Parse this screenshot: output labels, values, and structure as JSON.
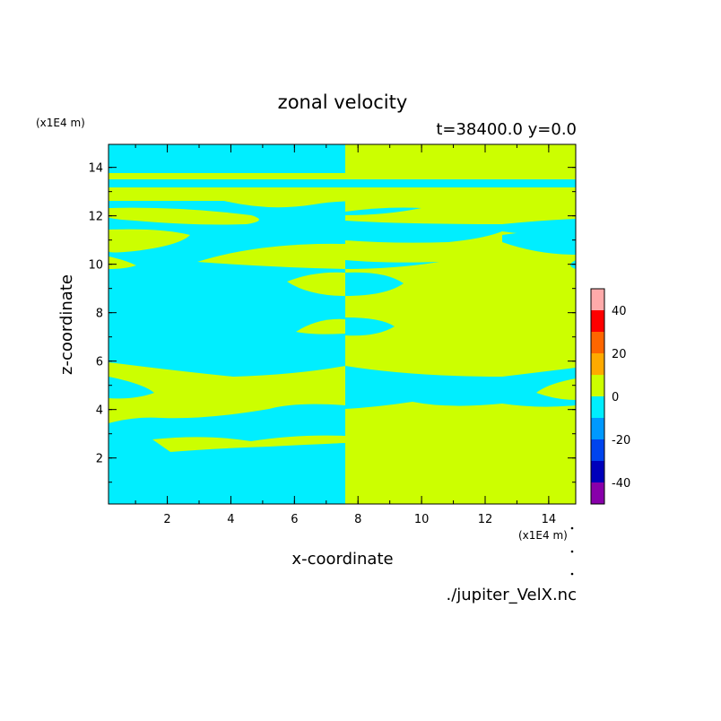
{
  "figure": {
    "title": "zonal velocity",
    "subtitle": "t=38400.0 y=0.0",
    "source": "./jupiter_VelX.nc",
    "z_unit": "(x1E4 m)",
    "x_unit": "(x1E4 m)"
  },
  "chart_data": {
    "type": "heatmap",
    "title": "zonal velocity",
    "subtitle": "t=38400.0 y=0.0",
    "xlabel": "x-coordinate",
    "ylabel": "z-coordinate",
    "x_unit": "(x1E4 m)",
    "y_unit": "(x1E4 m)",
    "xlim": [
      0.15,
      14.85
    ],
    "ylim": [
      0.1,
      14.95
    ],
    "x_ticks": [
      2,
      4,
      6,
      8,
      10,
      12,
      14
    ],
    "y_ticks": [
      2,
      4,
      6,
      8,
      10,
      12,
      14
    ],
    "grid": false,
    "colorbar": {
      "levels": [
        -50,
        -40,
        -30,
        -20,
        -10,
        0,
        10,
        20,
        30,
        40,
        50
      ],
      "tick_labels": [
        "40",
        "20",
        "0",
        "-20",
        "-40"
      ],
      "tick_values": [
        40,
        20,
        0,
        -20,
        -40
      ],
      "colors": [
        "#8800aa",
        "#0000bb",
        "#0044ee",
        "#0099ff",
        "#00eeff",
        "#ccff00",
        "#ffaa00",
        "#ff6600",
        "#ff0000",
        "#ffaaaa"
      ]
    },
    "colors": {
      "positive_band": "#ccff00",
      "negative_band": "#00eeff"
    },
    "regions_description": [
      {
        "z_range": [
          14,
          14.95
        ],
        "left_half": "negative",
        "right_half": "positive"
      },
      {
        "z_range": [
          13.7,
          14
        ],
        "left_half": "positive",
        "right_half": "positive"
      },
      {
        "z_range": [
          13.2,
          13.7
        ],
        "left_half": "negative",
        "right_half": "negative"
      },
      {
        "z_range": [
          6,
          12.5
        ],
        "left_half": "mostly negative",
        "right_half": "mostly positive"
      },
      {
        "z_range": [
          4,
          6
        ],
        "left_half": "mostly positive",
        "right_half": "mostly negative"
      },
      {
        "z_range": [
          0.1,
          4
        ],
        "left_half": "mixed",
        "right_half": "mixed"
      }
    ]
  }
}
